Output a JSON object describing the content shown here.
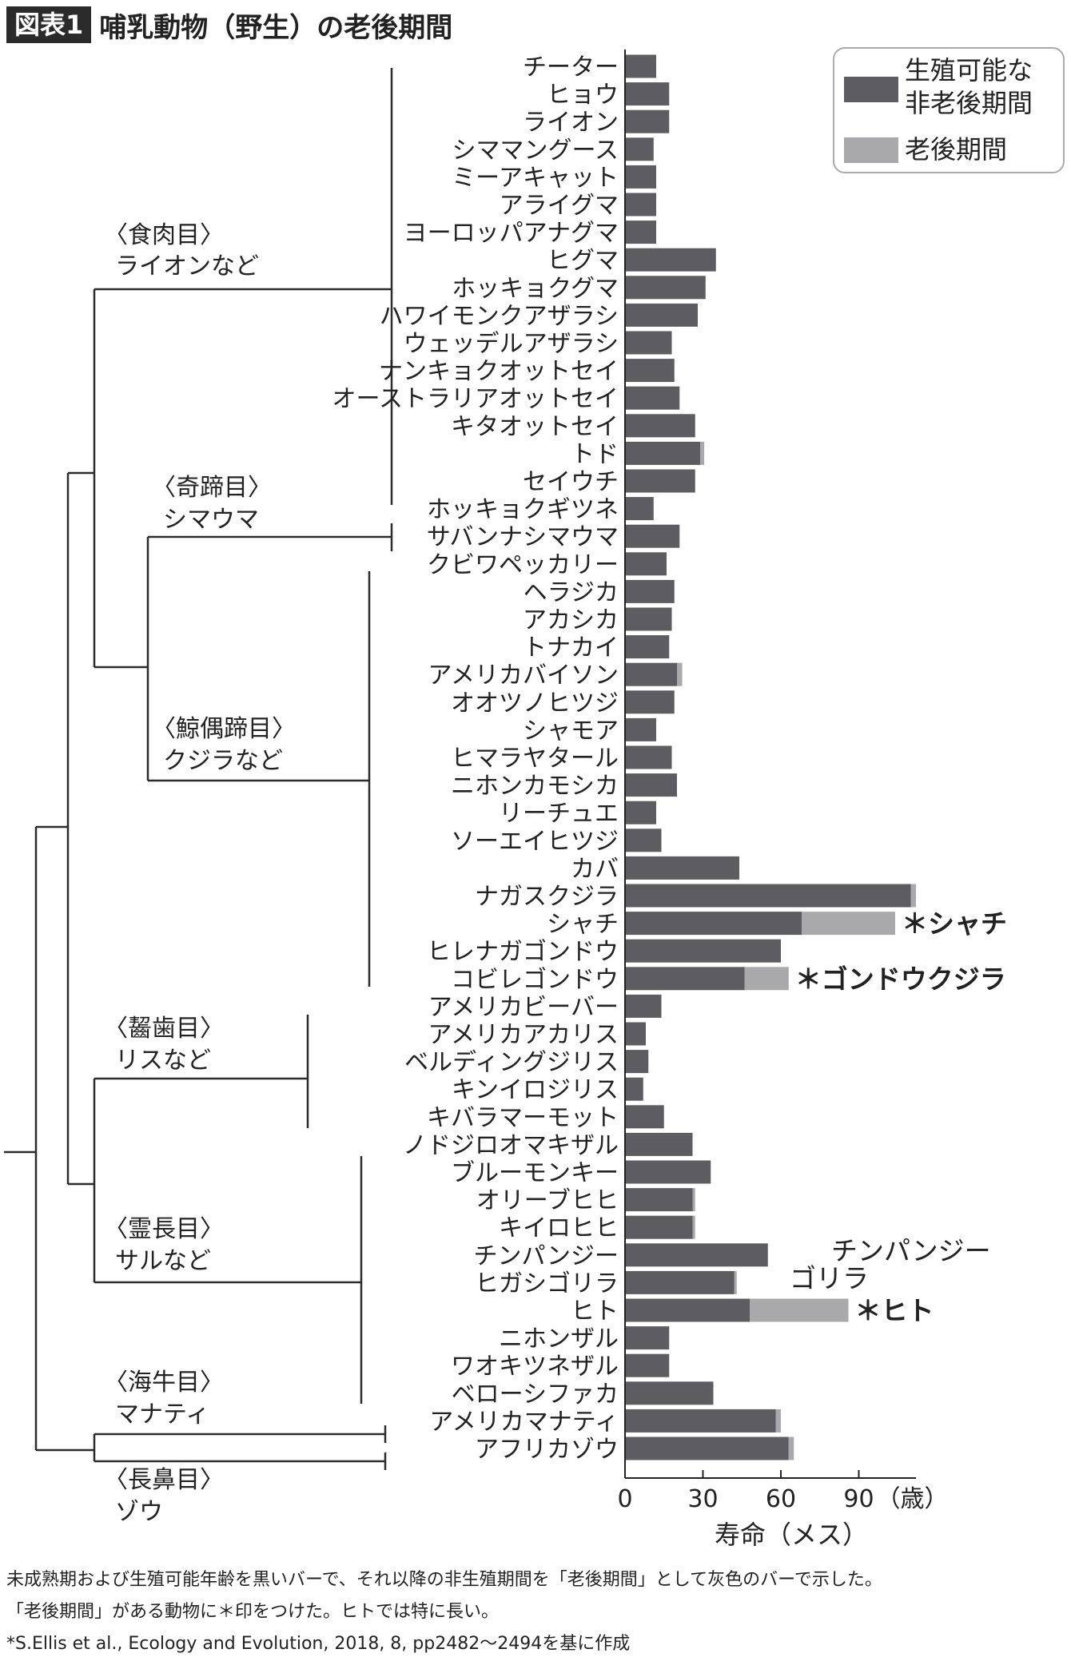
{
  "figure": {
    "label": "図表1",
    "title": "哺乳動物（野生）の老後期間"
  },
  "legend": {
    "repro_line1": "生殖可能な",
    "repro_line2": "非老後期間",
    "post": "老後期間"
  },
  "colors": {
    "repro": "#5d5c60",
    "post": "#a9a9ac",
    "tree": "#2b2b2b"
  },
  "chart_data": {
    "type": "bar",
    "orientation": "horizontal",
    "stacked": true,
    "categories": [
      "チーター",
      "ヒョウ",
      "ライオン",
      "シママングース",
      "ミーアキャット",
      "アライグマ",
      "ヨーロッパアナグマ",
      "ヒグマ",
      "ホッキョクグマ",
      "ハワイモンクアザラシ",
      "ウェッデルアザラシ",
      "ナンキョクオットセイ",
      "オーストラリアオットセイ",
      "キタオットセイ",
      "トド",
      "セイウチ",
      "ホッキョクギツネ",
      "サバンナシマウマ",
      "クビワペッカリー",
      "ヘラジカ",
      "アカシカ",
      "トナカイ",
      "アメリカバイソン",
      "オオツノヒツジ",
      "シャモア",
      "ヒマラヤタール",
      "ニホンカモシカ",
      "リーチュエ",
      "ソーエイヒツジ",
      "カバ",
      "ナガスクジラ",
      "シャチ",
      "ヒレナガゴンドウ",
      "コビレゴンドウ",
      "アメリカビーバー",
      "アメリカアカリス",
      "ベルディングジリス",
      "キンイロジリス",
      "キバラマーモット",
      "ノドジロオマキザル",
      "ブルーモンキー",
      "オリーブヒヒ",
      "キイロヒヒ",
      "チンパンジー",
      "ヒガシゴリラ",
      "ヒト",
      "ニホンザル",
      "ワオキツネザル",
      "ベローシファカ",
      "アメリカマナティ",
      "アフリカゾウ"
    ],
    "series": [
      {
        "name": "生殖可能な非老後期間",
        "values": [
          12,
          17,
          17,
          11,
          12,
          12,
          12,
          35,
          31,
          28,
          18,
          19,
          21,
          27,
          29,
          27,
          11,
          21,
          16,
          19,
          18,
          17,
          20,
          19,
          12,
          18,
          20,
          12,
          14,
          44,
          110,
          68,
          60,
          46,
          14,
          8,
          9,
          7,
          15,
          26,
          33,
          26,
          26,
          55,
          42,
          48,
          17,
          17,
          34,
          58,
          63
        ]
      },
      {
        "name": "老後期間",
        "values": [
          0,
          0,
          0,
          0,
          0,
          0,
          0,
          0,
          0,
          0,
          0,
          0,
          0,
          0,
          1.5,
          0,
          0,
          0,
          0,
          0,
          0,
          0,
          2,
          0,
          0,
          0,
          0,
          0,
          0,
          0,
          2,
          36,
          0,
          17,
          0,
          0,
          0,
          0,
          0,
          0,
          0,
          1,
          1,
          0,
          1,
          38,
          0,
          0,
          0,
          2,
          2
        ]
      }
    ],
    "star_annotations": [
      {
        "category": "シャチ",
        "text": "＊シャチ"
      },
      {
        "category": "コビレゴンドウ",
        "text": "＊ゴンドウクジラ"
      },
      {
        "category": "ヒト",
        "text": "＊ヒト"
      }
    ],
    "plain_annotations": [
      {
        "category": "チンパンジー",
        "text": "チンパンジー"
      },
      {
        "category": "ヒガシゴリラ",
        "text": "ゴリラ"
      }
    ],
    "xlim": [
      0,
      112
    ],
    "x_ticks": [
      "0",
      "30",
      "60",
      "90"
    ],
    "x_unit": "（歳）",
    "xlabel": "寿命（メス）"
  },
  "tree": {
    "groups": [
      {
        "line1": "〈食肉目〉",
        "line2": "ライオンなど"
      },
      {
        "line1": "〈奇蹄目〉",
        "line2": "シマウマ"
      },
      {
        "line1": "〈鯨偶蹄目〉",
        "line2": "クジラなど"
      },
      {
        "line1": "〈齧歯目〉",
        "line2": "リスなど"
      },
      {
        "line1": "〈霊長目〉",
        "line2": "サルなど"
      },
      {
        "line1": "〈海牛目〉",
        "line2": "マナティ"
      },
      {
        "line1": "〈長鼻目〉",
        "line2": "ゾウ"
      }
    ]
  },
  "footer": {
    "line1": "未成熟期および生殖可能年齢を黒いバーで、それ以降の非生殖期間を「老後期間」として灰色のバーで示した。",
    "line2": "「老後期間」がある動物に＊印をつけた。ヒトでは特に長い。",
    "line3": "*S.Ellis et al., Ecology and Evolution, 2018, 8, pp2482〜2494を基に作成"
  }
}
